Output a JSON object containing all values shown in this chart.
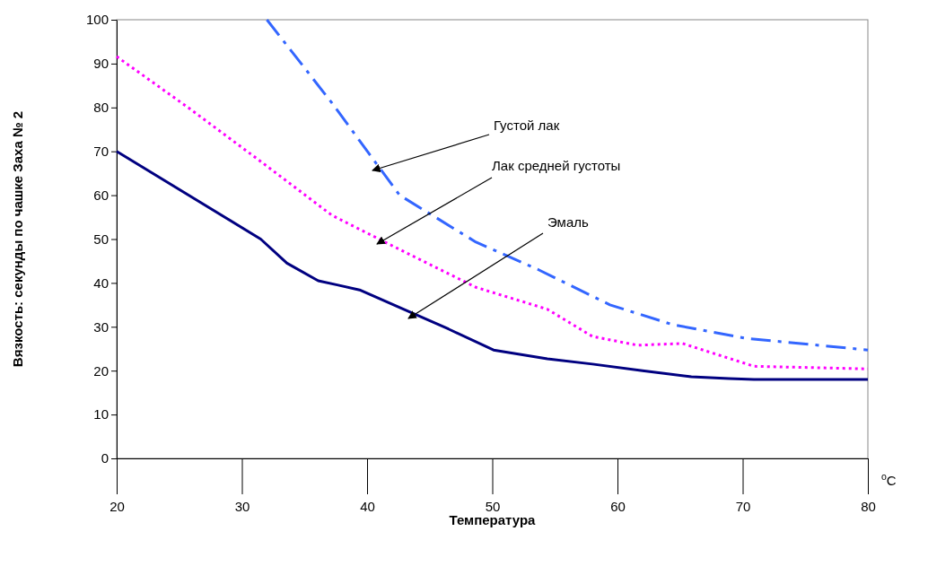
{
  "chart_data": {
    "type": "line",
    "xlabel": "Температура",
    "ylabel": "Вязкость: секунды по чашке Заха № 2",
    "xlim": [
      20,
      80
    ],
    "xticks": [
      20,
      30,
      40,
      50,
      60,
      70,
      80
    ],
    "ylim": [
      0,
      100
    ],
    "yticks": [
      0,
      10,
      20,
      30,
      40,
      50,
      60,
      70,
      80,
      90,
      100
    ],
    "grid": false,
    "marker": "none",
    "series": [
      {
        "color": "#000080",
        "line_style": "solid",
        "x": [
          20,
          31.5,
          33.6,
          36.1,
          37.7,
          39.4,
          42.9,
          46.5,
          50.1,
          54.4,
          58,
          62,
          65.9,
          68.9,
          70.9,
          75,
          80
        ],
        "values": [
          70,
          50,
          44.5,
          40.5,
          39.5,
          38.4,
          34,
          29.5,
          24.7,
          22.7,
          21.5,
          20,
          18.6,
          18.2,
          18,
          18,
          18
        ]
      },
      {
        "color": "#ff00ff",
        "line_style": "dotted",
        "x": [
          20,
          25.7,
          31.5,
          37.2,
          42.9,
          48.7,
          54.4,
          58,
          61.6,
          65.2,
          70.9,
          80
        ],
        "values": [
          91.6,
          80,
          67.7,
          55.4,
          47.2,
          39,
          34,
          27.8,
          25.8,
          26.2,
          21,
          20.4
        ]
      },
      {
        "color": "#3366ff",
        "line_style": "dashed",
        "x": [
          32,
          37.2,
          40.1,
          42.6,
          48.7,
          53.7,
          59.4,
          64.4,
          70.2,
          80
        ],
        "values": [
          100,
          81,
          69.7,
          60,
          49.3,
          43,
          35,
          30.5,
          27.4,
          24.7
        ]
      }
    ],
    "annotations": [
      "Густой лак",
      "Лак средней густоты",
      "Эмаль",
      "$^{o}$C"
    ]
  }
}
